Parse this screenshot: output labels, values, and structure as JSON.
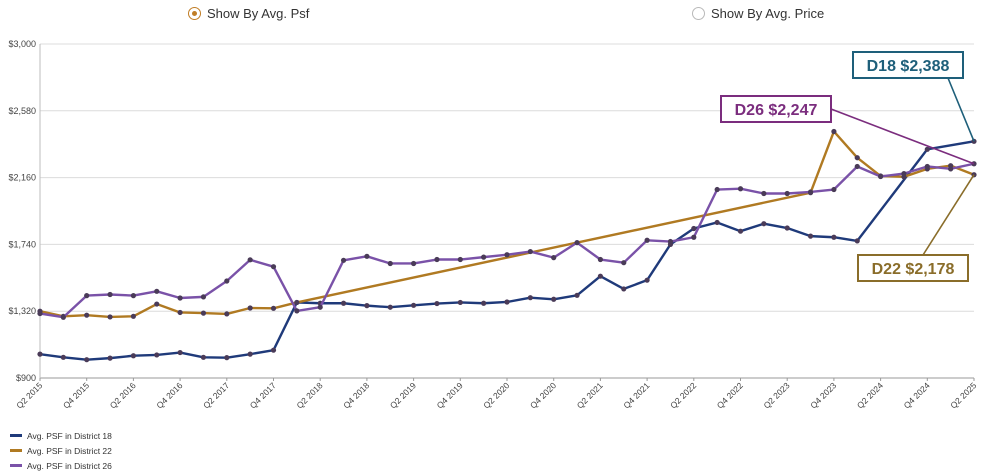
{
  "toggle": {
    "options": [
      {
        "label": "Show By Avg. Psf",
        "selected": true
      },
      {
        "label": "Show By Avg. Price",
        "selected": false
      }
    ]
  },
  "chart_data": {
    "type": "line",
    "y_ticks": [
      "$900",
      "$1,320",
      "$1,740",
      "$2,160",
      "$2,580",
      "$3,000"
    ],
    "ylim": [
      900,
      3000
    ],
    "grid": true,
    "x_tick_labels": [
      "Q2 2015",
      "Q4 2015",
      "Q2 2016",
      "Q4 2016",
      "Q2 2017",
      "Q4 2017",
      "Q2 2018",
      "Q4 2018",
      "Q2 2019",
      "Q4 2019",
      "Q2 2020",
      "Q4 2020",
      "Q2 2021",
      "Q4 2021",
      "Q2 2022",
      "Q4 2022",
      "Q2 2023",
      "Q4 2023",
      "Q2 2024",
      "Q4 2024",
      "Q2 2025"
    ],
    "x_categories": [
      "Q2 2015",
      "Q3 2015",
      "Q4 2015",
      "Q1 2016",
      "Q2 2016",
      "Q3 2016",
      "Q4 2016",
      "Q1 2017",
      "Q2 2017",
      "Q3 2017",
      "Q4 2017",
      "Q1 2018",
      "Q2 2018",
      "Q3 2018",
      "Q4 2018",
      "Q1 2019",
      "Q2 2019",
      "Q3 2019",
      "Q4 2019",
      "Q1 2020",
      "Q2 2020",
      "Q3 2020",
      "Q4 2020",
      "Q1 2021",
      "Q2 2021",
      "Q3 2021",
      "Q4 2021",
      "Q1 2022",
      "Q2 2022",
      "Q3 2022",
      "Q4 2022",
      "Q1 2023",
      "Q2 2023",
      "Q3 2023",
      "Q4 2023",
      "Q1 2024",
      "Q2 2024",
      "Q3 2024",
      "Q4 2024",
      "Q1 2025",
      "Q2 2025"
    ],
    "legend_placement": "bottom-left",
    "series": [
      {
        "name": "Avg. PSF in District 18",
        "color": "#1f3a7a",
        "values": [
          [
            0,
            1050
          ],
          [
            1,
            1030
          ],
          [
            2,
            1015
          ],
          [
            3,
            1025
          ],
          [
            4,
            1040
          ],
          [
            5,
            1045
          ],
          [
            6,
            1060
          ],
          [
            7,
            1030
          ],
          [
            8,
            1028
          ],
          [
            9,
            1050
          ],
          [
            10,
            1075
          ],
          [
            11,
            1375
          ],
          [
            12,
            1370
          ],
          [
            13,
            1370
          ],
          [
            14,
            1355
          ],
          [
            15,
            1345
          ],
          [
            16,
            1357
          ],
          [
            17,
            1368
          ],
          [
            18,
            1375
          ],
          [
            19,
            1370
          ],
          [
            20,
            1378
          ],
          [
            21,
            1405
          ],
          [
            22,
            1395
          ],
          [
            23,
            1420
          ],
          [
            24,
            1540
          ],
          [
            25,
            1460
          ],
          [
            26,
            1515
          ],
          [
            27,
            1740
          ],
          [
            28,
            1840
          ],
          [
            29,
            1878
          ],
          [
            30,
            1823
          ],
          [
            31,
            1870
          ],
          [
            32,
            1843
          ],
          [
            33,
            1792
          ],
          [
            34,
            1785
          ],
          [
            35,
            1762
          ],
          [
            38,
            2338
          ],
          [
            40,
            2388
          ]
        ]
      },
      {
        "name": "Avg. PSF in District 22",
        "color": "#b07a22",
        "values": [
          [
            0,
            1320
          ],
          [
            1,
            1288
          ],
          [
            2,
            1295
          ],
          [
            3,
            1284
          ],
          [
            4,
            1288
          ],
          [
            5,
            1365
          ],
          [
            6,
            1312
          ],
          [
            7,
            1308
          ],
          [
            8,
            1303
          ],
          [
            9,
            1340
          ],
          [
            10,
            1338
          ],
          [
            11,
            1375
          ],
          [
            33,
            2065
          ],
          [
            34,
            2450
          ],
          [
            35,
            2285
          ],
          [
            36,
            2170
          ],
          [
            37,
            2165
          ],
          [
            38,
            2215
          ],
          [
            39,
            2235
          ],
          [
            40,
            2178
          ]
        ]
      },
      {
        "name": "Avg. PSF in District 26",
        "color": "#7a52a8",
        "values": [
          [
            0,
            1305
          ],
          [
            1,
            1282
          ],
          [
            2,
            1418
          ],
          [
            3,
            1425
          ],
          [
            4,
            1418
          ],
          [
            5,
            1445
          ],
          [
            6,
            1403
          ],
          [
            7,
            1410
          ],
          [
            8,
            1510
          ],
          [
            9,
            1643
          ],
          [
            10,
            1600
          ],
          [
            11,
            1322
          ],
          [
            12,
            1345
          ],
          [
            13,
            1640
          ],
          [
            14,
            1665
          ],
          [
            15,
            1620
          ],
          [
            16,
            1620
          ],
          [
            17,
            1645
          ],
          [
            18,
            1645
          ],
          [
            19,
            1660
          ],
          [
            20,
            1675
          ],
          [
            21,
            1695
          ],
          [
            22,
            1657
          ],
          [
            23,
            1751
          ],
          [
            24,
            1645
          ],
          [
            25,
            1625
          ],
          [
            26,
            1766
          ],
          [
            27,
            1758
          ],
          [
            28,
            1785
          ],
          [
            29,
            2085
          ],
          [
            30,
            2090
          ],
          [
            31,
            2060
          ],
          [
            32,
            2060
          ],
          [
            33,
            2070
          ],
          [
            34,
            2085
          ],
          [
            35,
            2230
          ],
          [
            36,
            2167
          ],
          [
            37,
            2185
          ],
          [
            38,
            2230
          ],
          [
            39,
            2215
          ],
          [
            40,
            2247
          ]
        ]
      }
    ],
    "annotations": [
      {
        "text": "D18 $2,388",
        "series": 0,
        "color": "#1e5f7a"
      },
      {
        "text": "D26 $2,247",
        "series": 2,
        "color": "#7b2d7e"
      },
      {
        "text": "D22 $2,178",
        "series": 1,
        "color": "#8a6d2a"
      }
    ]
  }
}
